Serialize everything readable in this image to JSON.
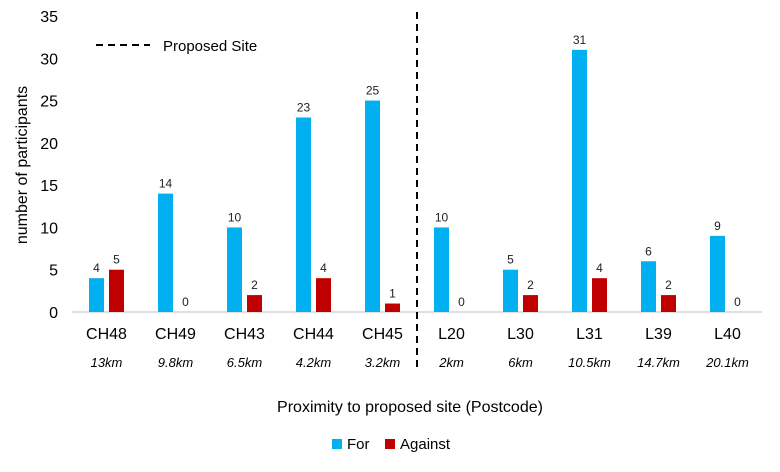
{
  "chart_data": {
    "type": "bar",
    "title": "",
    "xlabel": "Proximity to proposed site (Postcode)",
    "ylabel": "number of participants",
    "ylim": [
      0,
      35
    ],
    "yticks": [
      0,
      5,
      10,
      15,
      20,
      25,
      30,
      35
    ],
    "categories": [
      "CH48",
      "CH49",
      "CH43",
      "CH44",
      "CH45",
      "L20",
      "L30",
      "L31",
      "L39",
      "L40"
    ],
    "distances": [
      "13km",
      "9.8km",
      "6.5km",
      "4.2km",
      "3.2km",
      "2km",
      "6km",
      "10.5km",
      "14.7km",
      "20.1km"
    ],
    "series": [
      {
        "name": "For",
        "color": "#00B0F0",
        "values": [
          4,
          14,
          10,
          23,
          25,
          10,
          5,
          31,
          6,
          9
        ]
      },
      {
        "name": "Against",
        "color": "#C00000",
        "values": [
          5,
          0,
          2,
          4,
          1,
          0,
          2,
          4,
          2,
          0
        ]
      }
    ],
    "divider": {
      "after_category": "CH45",
      "label": "Proposed Site"
    },
    "legend_position": "bottom-center"
  }
}
